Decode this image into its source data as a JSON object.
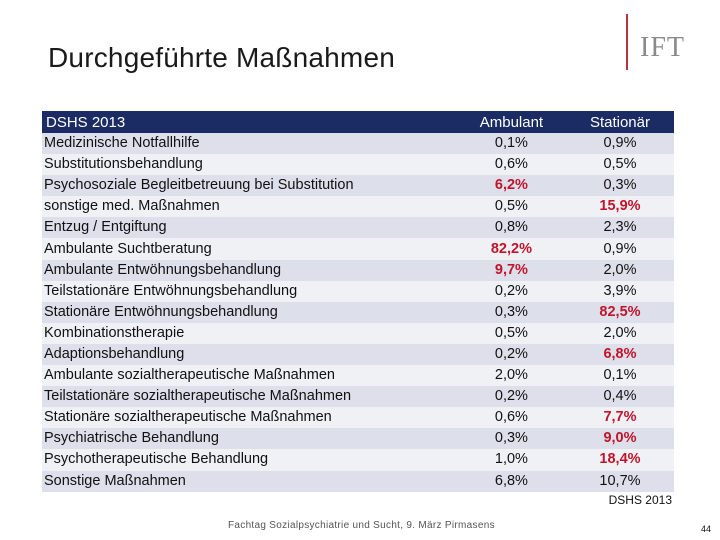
{
  "title": "Durchgeführte Maßnahmen",
  "logo_text": "IFT",
  "colors": {
    "header_bg": "#1b2b63",
    "highlight": "#c2142a",
    "logo_line": "#b0353d"
  },
  "table": {
    "headers": [
      "DSHS 2013",
      "Ambulant",
      "Stationär"
    ],
    "rows": [
      {
        "label": "Medizinische Notfallhilfe",
        "ambulant": "0,1%",
        "stationaer": "0,9%",
        "hl_ambulant": false,
        "hl_stationaer": false
      },
      {
        "label": "Substitutionsbehandlung",
        "ambulant": "0,6%",
        "stationaer": "0,5%",
        "hl_ambulant": false,
        "hl_stationaer": false
      },
      {
        "label": "Psychosoziale Begleitbetreuung bei Substitution",
        "ambulant": "6,2%",
        "stationaer": "0,3%",
        "hl_ambulant": true,
        "hl_stationaer": false
      },
      {
        "label": "sonstige med. Maßnahmen",
        "ambulant": "0,5%",
        "stationaer": "15,9%",
        "hl_ambulant": false,
        "hl_stationaer": true
      },
      {
        "label": "Entzug / Entgiftung",
        "ambulant": "0,8%",
        "stationaer": "2,3%",
        "hl_ambulant": false,
        "hl_stationaer": false
      },
      {
        "label": "Ambulante Suchtberatung",
        "ambulant": "82,2%",
        "stationaer": "0,9%",
        "hl_ambulant": true,
        "hl_stationaer": false
      },
      {
        "label": "Ambulante Entwöhnungsbehandlung",
        "ambulant": "9,7%",
        "stationaer": "2,0%",
        "hl_ambulant": true,
        "hl_stationaer": false
      },
      {
        "label": "Teilstationäre Entwöhnungsbehandlung",
        "ambulant": "0,2%",
        "stationaer": "3,9%",
        "hl_ambulant": false,
        "hl_stationaer": false
      },
      {
        "label": "Stationäre Entwöhnungsbehandlung",
        "ambulant": "0,3%",
        "stationaer": "82,5%",
        "hl_ambulant": false,
        "hl_stationaer": true
      },
      {
        "label": "Kombinationstherapie",
        "ambulant": "0,5%",
        "stationaer": "2,0%",
        "hl_ambulant": false,
        "hl_stationaer": false
      },
      {
        "label": "Adaptionsbehandlung",
        "ambulant": "0,2%",
        "stationaer": "6,8%",
        "hl_ambulant": false,
        "hl_stationaer": true
      },
      {
        "label": "Ambulante sozialtherapeutische Maßnahmen",
        "ambulant": "2,0%",
        "stationaer": "0,1%",
        "hl_ambulant": false,
        "hl_stationaer": false
      },
      {
        "label": "Teilstationäre sozialtherapeutische Maßnahmen",
        "ambulant": "0,2%",
        "stationaer": "0,4%",
        "hl_ambulant": false,
        "hl_stationaer": false
      },
      {
        "label": "Stationäre sozialtherapeutische Maßnahmen",
        "ambulant": "0,6%",
        "stationaer": "7,7%",
        "hl_ambulant": false,
        "hl_stationaer": true
      },
      {
        "label": "Psychiatrische Behandlung",
        "ambulant": "0,3%",
        "stationaer": "9,0%",
        "hl_ambulant": false,
        "hl_stationaer": true
      },
      {
        "label": "Psychotherapeutische Behandlung",
        "ambulant": "1,0%",
        "stationaer": "18,4%",
        "hl_ambulant": false,
        "hl_stationaer": true
      },
      {
        "label": "Sonstige Maßnahmen",
        "ambulant": "6,8%",
        "stationaer": "10,7%",
        "hl_ambulant": false,
        "hl_stationaer": false
      }
    ]
  },
  "source": "DSHS 2013",
  "footer": "Fachtag Sozialpsychiatrie und Sucht, 9. März Pirmasens",
  "page_number": "44"
}
